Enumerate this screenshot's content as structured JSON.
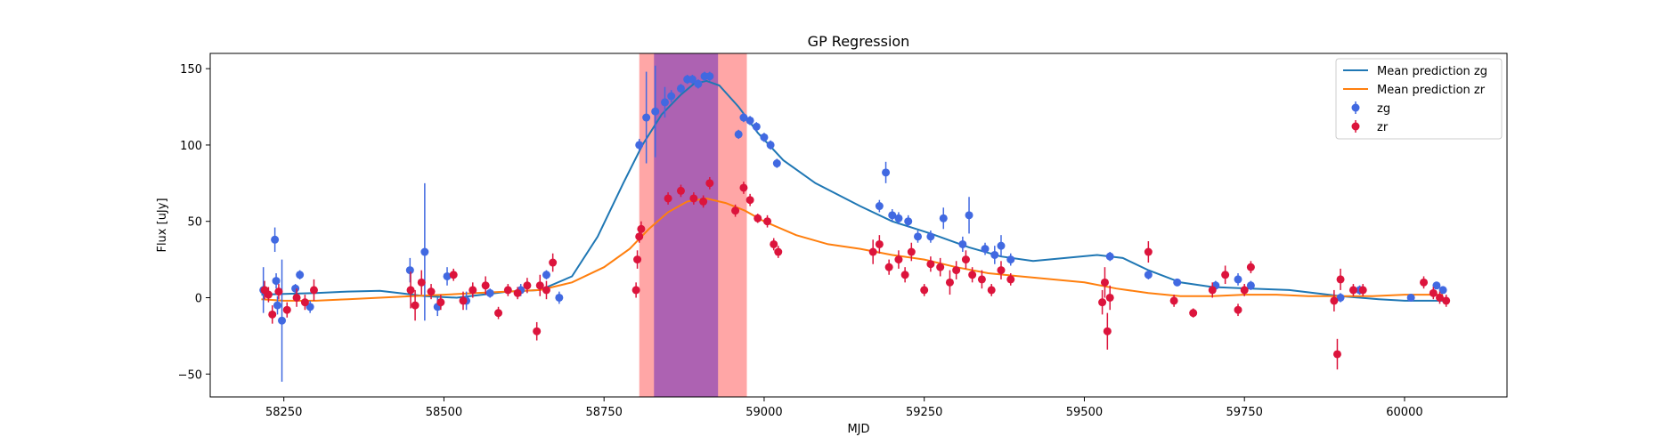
{
  "chart_data": {
    "type": "scatter",
    "title": "GP Regression",
    "xlabel": "MJD",
    "ylabel": "Flux [uJy]",
    "xlim": [
      58135,
      60160
    ],
    "ylim": [
      -65,
      160
    ],
    "xticks": [
      58250,
      58500,
      58750,
      59000,
      59250,
      59500,
      59750,
      60000
    ],
    "yticks": [
      -50,
      0,
      50,
      100,
      150
    ],
    "legend_position": "top-right",
    "grid": false,
    "shaded_regions": [
      {
        "x": [
          58805,
          58973
        ],
        "color": "#ff8080"
      },
      {
        "x": [
          58828,
          58928
        ],
        "color": "#9f56b4"
      }
    ],
    "series": [
      {
        "name": "Mean prediction zg",
        "kind": "line",
        "color": "#1f77b4",
        "x": [
          58215,
          58250,
          58300,
          58350,
          58400,
          58430,
          58470,
          58520,
          58560,
          58600,
          58650,
          58700,
          58740,
          58780,
          58810,
          58840,
          58870,
          58890,
          58910,
          58930,
          58960,
          58990,
          59030,
          59080,
          59150,
          59200,
          59260,
          59320,
          59370,
          59420,
          59470,
          59520,
          59560,
          59600,
          59650,
          59700,
          59760,
          59820,
          59900,
          59960,
          60000,
          60060
        ],
        "y": [
          2,
          2.5,
          3,
          4,
          4.5,
          3,
          1,
          0,
          2,
          4,
          5,
          14,
          40,
          75,
          100,
          120,
          133,
          140,
          142,
          139,
          125,
          108,
          90,
          75,
          60,
          50,
          42,
          33,
          27,
          24,
          26,
          28,
          26,
          18,
          10,
          7,
          6,
          5,
          1,
          -1,
          -2,
          -2
        ]
      },
      {
        "name": "Mean prediction zr",
        "kind": "line",
        "color": "#ff7f0e",
        "x": [
          58215,
          58250,
          58300,
          58350,
          58400,
          58450,
          58500,
          58550,
          58600,
          58650,
          58700,
          58750,
          58790,
          58820,
          58850,
          58880,
          58910,
          58940,
          58970,
          59000,
          59050,
          59100,
          59150,
          59200,
          59250,
          59300,
          59350,
          59400,
          59450,
          59500,
          59550,
          59600,
          59650,
          59700,
          59750,
          59800,
          59850,
          59900,
          59950,
          60000,
          60060
        ],
        "y": [
          -1,
          -2,
          -2,
          -1,
          0,
          1,
          2,
          3,
          4,
          5,
          10,
          20,
          32,
          45,
          56,
          63,
          65,
          62,
          57,
          50,
          41,
          35,
          32,
          28,
          25,
          20,
          16,
          14,
          12,
          10,
          6,
          3,
          1,
          1,
          2,
          2,
          1,
          1,
          1,
          2,
          2
        ]
      },
      {
        "name": "zg",
        "kind": "errorbar",
        "color": "#4169e1",
        "x": [
          58218,
          58236,
          58238,
          58240,
          58247,
          58268,
          58275,
          58291,
          58447,
          58470,
          58490,
          58505,
          58535,
          58572,
          58620,
          58660,
          58680,
          58805,
          58816,
          58830,
          58845,
          58855,
          58870,
          58880,
          58888,
          58897,
          58907,
          58915,
          58960,
          58968,
          58978,
          58988,
          59000,
          59010,
          59020,
          59180,
          59190,
          59200,
          59210,
          59225,
          59240,
          59260,
          59280,
          59310,
          59320,
          59345,
          59360,
          59370,
          59385,
          59540,
          59600,
          59645,
          59705,
          59740,
          59760,
          59900,
          59930,
          60010,
          60050,
          60060
        ],
        "y": [
          5,
          38,
          11,
          -5,
          -15,
          6,
          15,
          -6,
          18,
          30,
          -6,
          14,
          -2,
          3,
          5,
          15,
          0,
          100,
          118,
          122,
          128,
          132,
          137,
          143,
          143,
          140,
          145,
          145,
          107,
          118,
          116,
          112,
          105,
          100,
          88,
          60,
          82,
          54,
          52,
          50,
          40,
          40,
          52,
          35,
          54,
          32,
          28,
          34,
          25,
          27,
          15,
          10,
          8,
          12,
          8,
          0,
          5,
          0,
          8,
          5
        ],
        "err": [
          15,
          8,
          5,
          6,
          40,
          3,
          3,
          4,
          8,
          45,
          6,
          6,
          6,
          3,
          4,
          3,
          4,
          4,
          30,
          30,
          10,
          4,
          3,
          3,
          3,
          3,
          3,
          3,
          3,
          3,
          3,
          3,
          3,
          3,
          3,
          4,
          7,
          4,
          4,
          4,
          4,
          4,
          7,
          5,
          12,
          4,
          6,
          7,
          4,
          3,
          3,
          2,
          3,
          4,
          3,
          3,
          3,
          2,
          2,
          2
        ]
      },
      {
        "name": "zr",
        "kind": "errorbar",
        "color": "#dc143c",
        "x": [
          58220,
          58226,
          58232,
          58242,
          58255,
          58270,
          58283,
          58297,
          58448,
          58455,
          58465,
          58480,
          58495,
          58515,
          58530,
          58545,
          58565,
          58585,
          58600,
          58615,
          58630,
          58645,
          58650,
          58660,
          58670,
          58800,
          58802,
          58805,
          58808,
          58850,
          58870,
          58890,
          58905,
          58915,
          58955,
          58968,
          58978,
          58990,
          59005,
          59015,
          59022,
          59170,
          59180,
          59195,
          59210,
          59220,
          59230,
          59250,
          59260,
          59275,
          59290,
          59300,
          59315,
          59325,
          59340,
          59355,
          59370,
          59385,
          59528,
          59532,
          59536,
          59540,
          59600,
          59640,
          59670,
          59700,
          59720,
          59740,
          59750,
          59760,
          59890,
          59895,
          59900,
          59920,
          59935,
          60030,
          60045,
          60055,
          60065
        ],
        "y": [
          5,
          2,
          -11,
          4,
          -8,
          0,
          -3,
          5,
          5,
          -5,
          10,
          4,
          -3,
          15,
          -2,
          5,
          8,
          -10,
          5,
          3,
          8,
          -22,
          8,
          5,
          23,
          5,
          25,
          40,
          45,
          65,
          70,
          65,
          63,
          75,
          57,
          72,
          64,
          52,
          50,
          35,
          30,
          30,
          35,
          20,
          25,
          15,
          30,
          5,
          22,
          20,
          10,
          18,
          25,
          15,
          12,
          5,
          18,
          12,
          -3,
          10,
          -22,
          0,
          30,
          -2,
          -10,
          5,
          15,
          -8,
          5,
          20,
          -2,
          -37,
          12,
          5,
          5,
          10,
          3,
          0,
          -2
        ],
        "err": [
          6,
          5,
          6,
          5,
          5,
          6,
          5,
          7,
          12,
          10,
          8,
          5,
          5,
          4,
          6,
          5,
          6,
          4,
          4,
          4,
          5,
          6,
          7,
          6,
          6,
          5,
          6,
          4,
          5,
          4,
          4,
          4,
          4,
          4,
          4,
          4,
          4,
          3,
          4,
          4,
          4,
          8,
          6,
          5,
          6,
          5,
          6,
          4,
          5,
          6,
          8,
          6,
          6,
          5,
          6,
          4,
          6,
          4,
          8,
          10,
          12,
          8,
          7,
          4,
          3,
          5,
          6,
          4,
          4,
          4,
          7,
          10,
          7,
          4,
          4,
          4,
          4,
          4,
          4
        ]
      }
    ]
  }
}
